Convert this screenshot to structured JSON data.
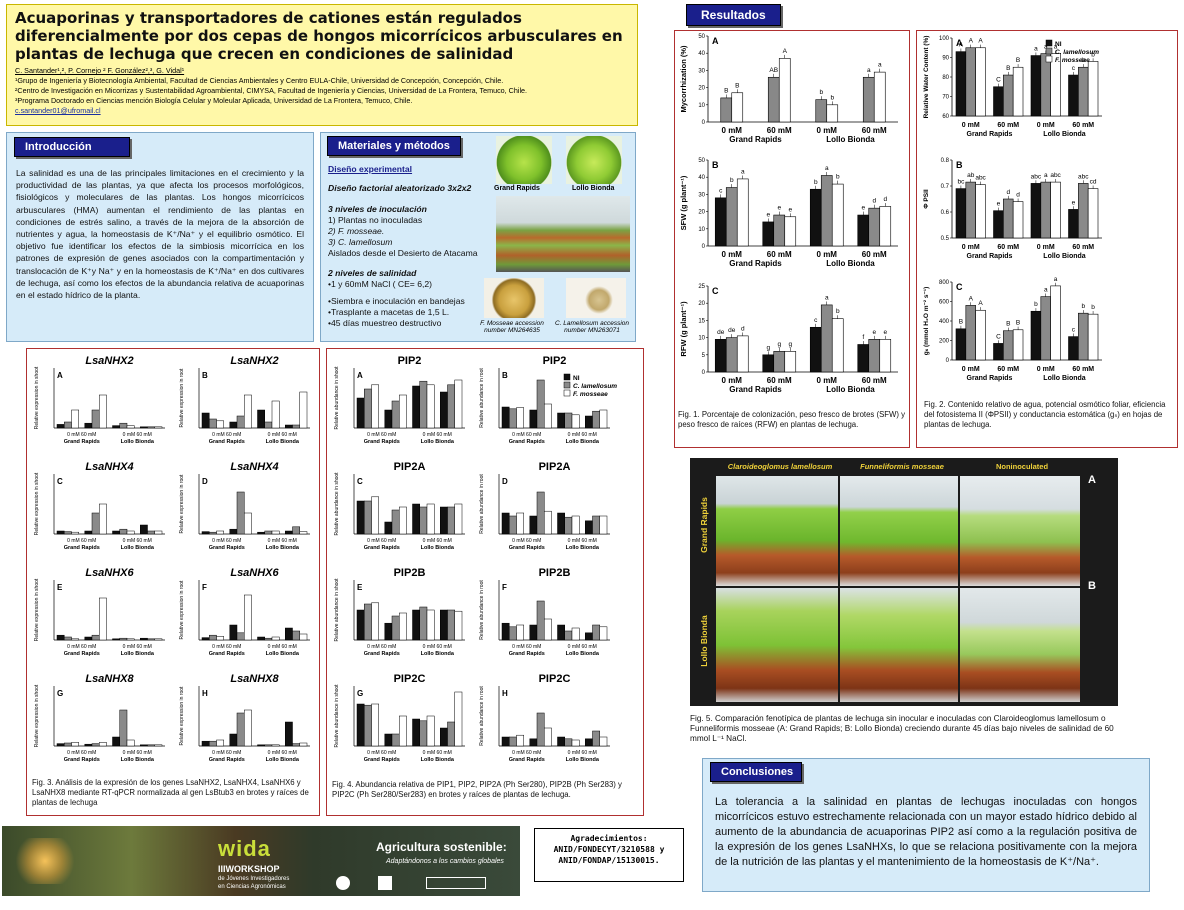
{
  "header": {
    "title": "Acuaporinas y transportadores de cationes están regulados diferencialmente por dos cepas de hongos micorrícicos arbusculares en plantas de lechuga que crecen en condiciones de salinidad",
    "authors": "C. Santander¹,², P. Cornejo ² F. González²,³, G. Vidal¹",
    "aff1": "¹Grupo de Ingeniería y Biotecnología Ambiental, Facultad de Ciencias Ambientales y Centro EULA-Chile, Universidad de Concepción, Concepción, Chile.",
    "aff2": "²Centro de Investigación en Micorrizas y Sustentabilidad Agroambiental, CIMYSA, Facultad de Ingeniería y Ciencias, Universidad de La Frontera, Temuco, Chile.",
    "aff3": "³Programa Doctorado en Ciencias mención Biología Celular y Moleular Aplicada, Universidad de La Frontera, Temuco, Chile.",
    "email": "c.santander01@ufromail.cl"
  },
  "intro": {
    "heading": "Introducción",
    "text": "La salinidad es una de las principales limitaciones en el crecimiento y la productividad de las plantas, ya que afecta los procesos morfológicos, fisiológicos y moleculares de las plantas. Los hongos micorrícicos arbusculares (HMA) aumentan el rendimiento de las plantas en condiciones de estrés salino, a través de la mejora de la absorción de nutrientes y agua, la homeostasis de K⁺/Na⁺ y el equilibrio osmótico. El objetivo fue identificar los efectos de la simbiosis micorrícica en los patrones de expresión de genes asociados con la compartimentación y translocación de K⁺y Na⁺ y en la homeostasis de K⁺/Na⁺ en dos cultivares de lechuga, así como los efectos de la abundancia relativa de acuaporinas en el estado hídrico de la planta."
  },
  "methods": {
    "heading": "Materiales y métodos",
    "design_title": "Diseño experimental",
    "factorial": "Diseño factorial aleatorizado 3x2x2",
    "inoc_title": "3 niveles de inoculación",
    "inoc1": "1) Plantas no inoculadas",
    "inoc2": "2) F. mosseae.",
    "inoc3": "3) C. lamellosum",
    "inoc_note": "Aislados desde el Desierto de Atacama",
    "sal_title": "2 niveles de salinidad",
    "sal1": "•1 y 60mM NaCl ( CE= 6,2)",
    "step1": "•Siembra e inoculación en bandejas",
    "step2": "•Trasplante a macetas de 1,5 L.",
    "step3": "•45 días muestreo destructivo",
    "photo_label_gr": "Grand Rapids",
    "photo_label_lb": "Lollo Bionda",
    "fm_caption1": "F. Mosseae accession",
    "fm_caption2": "number MN264635",
    "cl_caption1": "C. Lamellosum accession",
    "cl_caption2": "number MN263071"
  },
  "results": {
    "heading": "Resultados"
  },
  "fig1": {
    "caption": "Fig. 1. Porcentaje de colonización, peso fresco de brotes (SFW) y peso fresco de raíces (RFW) en plantas de lechuga.",
    "panels": [
      {
        "letter": "A",
        "ylabel": "Mycorrhization (%)",
        "ymax": 50,
        "ticks": [
          0,
          10,
          20,
          30,
          40,
          50
        ],
        "values": [
          [
            14,
            17
          ],
          [
            26,
            37
          ],
          [
            13,
            10
          ],
          [
            26,
            29
          ]
        ],
        "letters": [
          [
            "B",
            "B"
          ],
          [
            "AB",
            "A"
          ],
          [
            "b",
            "b"
          ],
          [
            "a",
            "a"
          ]
        ]
      },
      {
        "letter": "B",
        "ylabel": "SFW (g plant⁻¹)",
        "ymax": 50,
        "ticks": [
          0,
          10,
          20,
          30,
          40,
          50
        ],
        "values": [
          [
            28,
            34,
            39
          ],
          [
            14,
            18,
            17
          ],
          [
            33,
            41,
            36
          ],
          [
            18,
            22,
            23
          ]
        ],
        "letters": [
          [
            "c",
            "b",
            "a"
          ],
          [
            "e",
            "e",
            "e"
          ],
          [
            "b",
            "a",
            "b"
          ],
          [
            "e",
            "d",
            "d"
          ]
        ]
      },
      {
        "letter": "C",
        "ylabel": "RFW (g plant⁻¹)",
        "ymax": 25,
        "ticks": [
          0,
          5,
          10,
          15,
          20,
          25
        ],
        "values": [
          [
            9.5,
            10,
            10.5
          ],
          [
            5,
            6,
            6
          ],
          [
            13,
            19.5,
            15.5
          ],
          [
            8,
            9.5,
            9.5
          ]
        ],
        "letters": [
          [
            "de",
            "de",
            "d"
          ],
          [
            "g",
            "g",
            "g"
          ],
          [
            "c",
            "a",
            "b"
          ],
          [
            "f",
            "e",
            "e"
          ]
        ]
      }
    ]
  },
  "fig2": {
    "caption": "Fig. 2. Contenido relativo de agua, potencial osmótico foliar, eficiencia del fotosistema II (ΦPSII) y conductancia estomática (gₛ) en hojas de plantas de lechuga.",
    "legend": [
      "NI",
      "C. lamellosum",
      "F. mosseae"
    ],
    "panels": [
      {
        "letter": "A",
        "ylabel": "Relative Water Content (%)",
        "ymin": 60,
        "ymax": 100,
        "ticks": [
          60,
          70,
          80,
          90,
          100
        ],
        "values": [
          [
            93,
            95,
            95
          ],
          [
            75,
            81,
            85
          ],
          [
            91,
            92,
            92
          ],
          [
            81,
            85,
            88
          ]
        ],
        "letters": [
          [
            "A",
            "A",
            "A"
          ],
          [
            "C",
            "B",
            "B"
          ],
          [
            "a",
            "a",
            "a"
          ],
          [
            "c",
            "b",
            "b"
          ]
        ]
      },
      {
        "letter": "B",
        "ylabel": "Φ PSII",
        "ymin": 0.5,
        "ymax": 0.8,
        "ticks": [
          0.5,
          0.6,
          0.7,
          0.8
        ],
        "values": [
          [
            0.69,
            0.715,
            0.705
          ],
          [
            0.605,
            0.65,
            0.64
          ],
          [
            0.71,
            0.715,
            0.715
          ],
          [
            0.61,
            0.71,
            0.69
          ]
        ],
        "letters": [
          [
            "bc",
            "ab",
            "abc"
          ],
          [
            "e",
            "d",
            "d"
          ],
          [
            "abc",
            "a",
            "abc"
          ],
          [
            "e",
            "abc",
            "cd"
          ]
        ]
      },
      {
        "letter": "C",
        "ylabel": "gₛ (mmol H₂O m⁻² s⁻¹)",
        "ymin": 0,
        "ymax": 800,
        "ticks": [
          0,
          200,
          400,
          600,
          800
        ],
        "values": [
          [
            320,
            560,
            510
          ],
          [
            170,
            300,
            310
          ],
          [
            500,
            650,
            760
          ],
          [
            240,
            480,
            470
          ]
        ],
        "letters": [
          [
            "B",
            "A",
            "A"
          ],
          [
            "C",
            "B",
            "B"
          ],
          [
            "b",
            "a",
            "a"
          ],
          [
            "c",
            "b",
            "b"
          ]
        ]
      }
    ],
    "groups": [
      "0 mM",
      "60 mM",
      "0 mM",
      "60 mM"
    ],
    "cultivars": [
      "Grand Rapids",
      "Lollo Bionda"
    ]
  },
  "fig3": {
    "caption": "Fig. 3. Análisis de la expresión de los genes LsaNHX2, LsaNHX4, LsaNHX6 y LsaNHX8 mediante RT-qPCR normalizada al gen LsBtub3 en brotes y raíces de plantas de lechuga",
    "titles": [
      "LsaNHX2",
      "LsaNHX2",
      "LsaNHX4",
      "LsaNHX4",
      "LsaNHX6",
      "LsaNHX6",
      "LsaNHX8",
      "LsaNHX8"
    ],
    "letters": [
      "A",
      "B",
      "C",
      "D",
      "E",
      "F",
      "G",
      "H"
    ],
    "ylabels": [
      "Relative expression in shoot",
      "Relative expression in root"
    ]
  },
  "fig4": {
    "caption": "Fig. 4. Abundancia relativa de PIP1, PIP2, PIP2A (Ph Ser280), PIP2B (Ph Ser283) y PIP2C (Ph Ser280/Ser283) en brotes y raíces de plantas de lechuga.",
    "titles": [
      "PIP2",
      "PIP2",
      "PIP2A",
      "PIP2A",
      "PIP2B",
      "PIP2B",
      "PIP2C",
      "PIP2C"
    ],
    "letters": [
      "A",
      "B",
      "C",
      "D",
      "E",
      "F",
      "G",
      "H"
    ],
    "ylabels": [
      "Relative abundance in shoot",
      "Relative abundance in root"
    ],
    "legend": [
      "NI",
      "C. lamellosum",
      "F. mosseae"
    ]
  },
  "fig5": {
    "col1": "Claroideoglomus lamellosum",
    "col2": "Funneliformis mosseae",
    "col3": "Noninoculated",
    "row1": "Grand Rapids",
    "row2": "Lollo Bionda",
    "markA": "A",
    "markB": "B",
    "caption": "Fig. 5. Comparación fenotípica de plantas de lechuga sin inocular e inoculadas con Claroideoglomus lamellosum o Funneliformis mosseae (A: Grand Rapids; B: Lollo Bionda) creciendo durante 45 días bajo niveles de salinidad de 60 mmol L⁻¹ NaCl."
  },
  "conclusions": {
    "heading": "Conclusiones",
    "text": "La tolerancia a la salinidad en plantas de lechugas inoculadas con hongos micorrícicos estuvo estrechamente relacionada con un mayor estado hídrico debido al aumento de la abundancia de acuaporinas PIP2 así como a la regulación positiva de la expresión de los genes LsaNHXs, lo que se relaciona positivamente con la mejora de la nutrición de las plantas y el mantenimiento de la homeostasis de K⁺/Na⁺."
  },
  "footer": {
    "banner_title": "Agricultura sostenible:",
    "banner_sub": "Adaptándonos a los cambios globales",
    "logo": "wida",
    "workshop": "IIIWORKSHOP",
    "workshop_sub1": "de Jóvenes Investigadores",
    "workshop_sub2": "en Ciencias Agronómicas",
    "ack_title": "Agradecimientos:",
    "ack1": "ANID/FONDECYT/3210588 y",
    "ack2": "ANID/FONDAP/15130015."
  },
  "colors": {
    "ni": "#111111",
    "cl": "#8a8a8a",
    "fm": "#ffffff",
    "header": "#1a1f8c",
    "title_bg": "#fff8a8",
    "panel_bg": "#d6ebf9"
  }
}
